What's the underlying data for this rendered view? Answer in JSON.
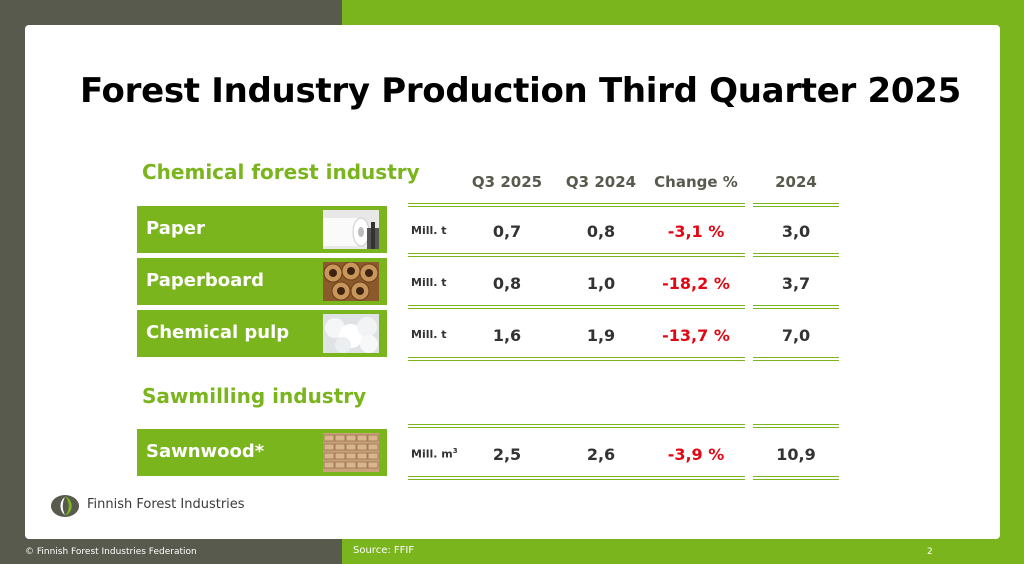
{
  "title": "Forest Industry Production Third Quarter 2025",
  "sections": {
    "chemical": "Chemical forest industry",
    "sawmilling": "Sawmilling industry"
  },
  "columns": [
    "Q3 2025",
    "Q3 2024",
    "Change %",
    "2024"
  ],
  "rows": [
    {
      "label": "Paper",
      "unit": "Mill. t",
      "q3_2025": "0,7",
      "q3_2024": "0,8",
      "change": "-3,1 %",
      "y2024": "3,0"
    },
    {
      "label": "Paperboard",
      "unit": "Mill. t",
      "q3_2025": "0,8",
      "q3_2024": "1,0",
      "change": "-18,2 %",
      "y2024": "3,7"
    },
    {
      "label": "Chemical pulp",
      "unit": "Mill. t",
      "q3_2025": "1,6",
      "q3_2024": "1,9",
      "change": "-13,7 %",
      "y2024": "7,0"
    },
    {
      "label": "Sawnwood*",
      "unit": "Mill. m",
      "unit_sup": "3",
      "q3_2025": "2,5",
      "q3_2024": "2,6",
      "change": "-3,9 %",
      "y2024": "10,9"
    }
  ],
  "logo_text": "Finnish Forest Industries",
  "footer": {
    "copyright": "© Finnish Forest Industries Federation",
    "source": "Source: FFIF",
    "page": "2"
  },
  "colors": {
    "accent_green": "#7ab51d",
    "dark_bar": "#575a4c",
    "negative": "#e30613"
  },
  "icons": [
    "paper-roll-icon",
    "paperboard-tubes-icon",
    "pulp-fluff-icon",
    "lumber-stack-icon",
    "ffif-logo"
  ]
}
